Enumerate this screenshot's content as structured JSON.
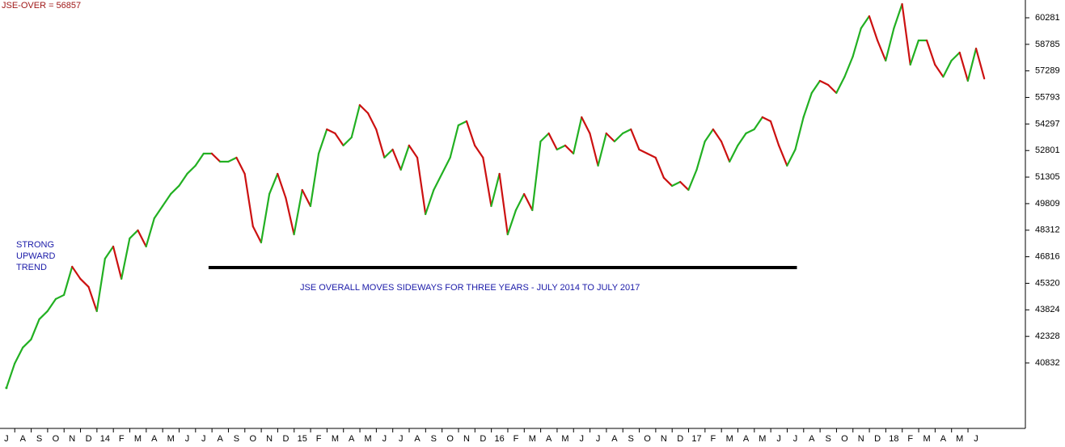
{
  "chart_data": {
    "type": "line",
    "title": "JSE-OVER = 56857",
    "annotations": {
      "trend": [
        "STRONG",
        "UPWARD",
        "TREND"
      ],
      "sideways": "JSE OVERALL MOVES SIDEWAYS FOR THREE YEARS - JULY 2014 TO JULY 2017"
    },
    "reference_line": {
      "value": 46209,
      "x": [
        12.3,
        48.1
      ],
      "color": "#000000"
    },
    "series": [
      {
        "name": "JSE-OVER",
        "up_color": "#22b022",
        "down_color": "#cc1111",
        "x": [
          0,
          0.5,
          1,
          1.5,
          2,
          2.5,
          3,
          3.5,
          4,
          4.5,
          5,
          5.5,
          6,
          6.5,
          7,
          7.5,
          8,
          8.5,
          9,
          9.5,
          10,
          10.5,
          11,
          11.5,
          12,
          12.5,
          13,
          13.5,
          14,
          14.5,
          15,
          15.5,
          16,
          16.5,
          17,
          17.5,
          18,
          18.5,
          19,
          19.5,
          20,
          20.5,
          21,
          21.5,
          22,
          22.5,
          23,
          23.5,
          24,
          24.5,
          25,
          25.5,
          26,
          26.5,
          27,
          27.5,
          28,
          28.5,
          29,
          29.5,
          30,
          30.5,
          31,
          31.5,
          32,
          32.5,
          33,
          33.5,
          34,
          34.5,
          35,
          35.5,
          36,
          36.5,
          37,
          37.5,
          38,
          38.5,
          39,
          39.5,
          40,
          40.5,
          41,
          41.5,
          42,
          42.5,
          43,
          43.5,
          44,
          44.5,
          45,
          45.5,
          46,
          46.5,
          47,
          47.5,
          48,
          48.5,
          49,
          49.5,
          50,
          50.5,
          51,
          51.5,
          52,
          52.5,
          53,
          53.5,
          54,
          54.5,
          55,
          55.5,
          56,
          56.5,
          57,
          57.5,
          58,
          58.5,
          59,
          59.5
        ],
        "values": [
          39424,
          40790,
          41701,
          42156,
          43295,
          43750,
          44433,
          44661,
          46255,
          45572,
          45116,
          43750,
          46710,
          47393,
          45572,
          47849,
          48304,
          47393,
          48987,
          49670,
          50353,
          50809,
          51492,
          51947,
          52630,
          52630,
          52175,
          52175,
          52403,
          51492,
          48532,
          47621,
          50353,
          51492,
          50126,
          48076,
          50581,
          49670,
          52630,
          53996,
          53769,
          53086,
          53541,
          55363,
          54907,
          53996,
          52403,
          52858,
          51719,
          53086,
          52403,
          49215,
          50581,
          51492,
          52403,
          54224,
          54452,
          53086,
          52403,
          49670,
          51492,
          48076,
          49442,
          50353,
          49442,
          53313,
          53769,
          52858,
          53086,
          52630,
          54680,
          53769,
          51947,
          53769,
          53313,
          53769,
          53996,
          52858,
          52630,
          52403,
          51264,
          50809,
          51036,
          50581,
          51719,
          53313,
          53996,
          53313,
          52175,
          53086,
          53769,
          53996,
          54680,
          54452,
          53086,
          51947,
          52858,
          54680,
          56046,
          56729,
          56501,
          56046,
          56957,
          58095,
          59689,
          60372,
          59006,
          57867,
          59689,
          61055,
          57640,
          59006,
          59006,
          57640,
          56957,
          57867,
          58323,
          56729,
          58550,
          56857
        ]
      }
    ],
    "xlim": [
      -0.39,
      62.0
    ],
    "xticks": [
      {
        "value": 0,
        "label": "J"
      },
      {
        "value": 1,
        "label": "A"
      },
      {
        "value": 2,
        "label": "S"
      },
      {
        "value": 3,
        "label": "O"
      },
      {
        "value": 4,
        "label": "N"
      },
      {
        "value": 5,
        "label": "D"
      },
      {
        "value": 6,
        "label": "14"
      },
      {
        "value": 7,
        "label": "F"
      },
      {
        "value": 8,
        "label": "M"
      },
      {
        "value": 9,
        "label": "A"
      },
      {
        "value": 10,
        "label": "M"
      },
      {
        "value": 11,
        "label": "J"
      },
      {
        "value": 12,
        "label": "J"
      },
      {
        "value": 13,
        "label": "A"
      },
      {
        "value": 14,
        "label": "S"
      },
      {
        "value": 15,
        "label": "O"
      },
      {
        "value": 16,
        "label": "N"
      },
      {
        "value": 17,
        "label": "D"
      },
      {
        "value": 18,
        "label": "15"
      },
      {
        "value": 19,
        "label": "F"
      },
      {
        "value": 20,
        "label": "M"
      },
      {
        "value": 21,
        "label": "A"
      },
      {
        "value": 22,
        "label": "M"
      },
      {
        "value": 23,
        "label": "J"
      },
      {
        "value": 24,
        "label": "J"
      },
      {
        "value": 25,
        "label": "A"
      },
      {
        "value": 26,
        "label": "S"
      },
      {
        "value": 27,
        "label": "O"
      },
      {
        "value": 28,
        "label": "N"
      },
      {
        "value": 29,
        "label": "D"
      },
      {
        "value": 30,
        "label": "16"
      },
      {
        "value": 31,
        "label": "F"
      },
      {
        "value": 32,
        "label": "M"
      },
      {
        "value": 33,
        "label": "A"
      },
      {
        "value": 34,
        "label": "M"
      },
      {
        "value": 35,
        "label": "J"
      },
      {
        "value": 36,
        "label": "J"
      },
      {
        "value": 37,
        "label": "A"
      },
      {
        "value": 38,
        "label": "S"
      },
      {
        "value": 39,
        "label": "O"
      },
      {
        "value": 40,
        "label": "N"
      },
      {
        "value": 41,
        "label": "D"
      },
      {
        "value": 42,
        "label": "17"
      },
      {
        "value": 43,
        "label": "F"
      },
      {
        "value": 44,
        "label": "M"
      },
      {
        "value": 45,
        "label": "A"
      },
      {
        "value": 46,
        "label": "M"
      },
      {
        "value": 47,
        "label": "J"
      },
      {
        "value": 48,
        "label": "J"
      },
      {
        "value": 49,
        "label": "A"
      },
      {
        "value": 50,
        "label": "S"
      },
      {
        "value": 51,
        "label": "O"
      },
      {
        "value": 52,
        "label": "N"
      },
      {
        "value": 53,
        "label": "D"
      },
      {
        "value": 54,
        "label": "18"
      },
      {
        "value": 55,
        "label": "F"
      },
      {
        "value": 56,
        "label": "M"
      },
      {
        "value": 57,
        "label": "A"
      },
      {
        "value": 58,
        "label": "M"
      },
      {
        "value": 59,
        "label": "J"
      }
    ],
    "ylim": [
      37143,
      61283
    ],
    "yticks": [
      40832,
      42328,
      43824,
      45320,
      46816,
      48312,
      49809,
      51305,
      52801,
      54297,
      55793,
      57289,
      58785,
      60281
    ]
  }
}
